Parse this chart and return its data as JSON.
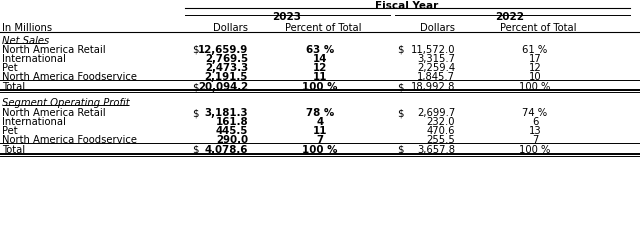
{
  "title": "Fiscal Year",
  "year_headers": [
    "2023",
    "2022"
  ],
  "col_headers": [
    "In Millions",
    "",
    "Dollars",
    "Percent of Total",
    "Dollars",
    "Percent of Total"
  ],
  "section1_label": "Net Sales",
  "section2_label": "Segment Operating Profit",
  "rows_net_sales": [
    [
      "North America Retail",
      "$",
      "12,659.9",
      "63 %",
      "$",
      "11,572.0",
      "61 %"
    ],
    [
      "International",
      "",
      "2,769.5",
      "14",
      "",
      "3,315.7",
      "17"
    ],
    [
      "Pet",
      "",
      "2,473.3",
      "12",
      "",
      "2,259.4",
      "12"
    ],
    [
      "North America Foodservice",
      "",
      "2,191.5",
      "11",
      "",
      "1,845.7",
      "10"
    ]
  ],
  "total_net_sales": [
    "Total",
    "$",
    "20,094.2",
    "100 %",
    "$",
    "18,992.8",
    "100 %"
  ],
  "rows_seg_profit": [
    [
      "North America Retail",
      "$",
      "3,181.3",
      "78 %",
      "$",
      "2,699.7",
      "74 %"
    ],
    [
      "International",
      "",
      "161.8",
      "4",
      "",
      "232.0",
      "6"
    ],
    [
      "Pet",
      "",
      "445.5",
      "11",
      "",
      "470.6",
      "13"
    ],
    [
      "North America Foodservice",
      "",
      "290.0",
      "7",
      "",
      "255.5",
      "7"
    ]
  ],
  "total_seg_profit": [
    "Total",
    "$",
    "4,078.6",
    "100 %",
    "$",
    "3,657.8",
    "100 %"
  ],
  "bg_color": "#ffffff",
  "text_color": "#000000",
  "header_line_color": "#000000"
}
